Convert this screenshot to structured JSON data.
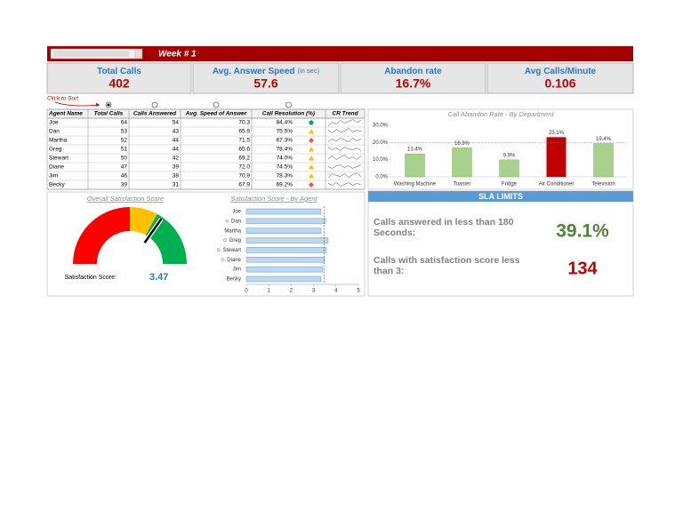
{
  "header": {
    "title": "Week # 1"
  },
  "kpis": [
    {
      "label": "Total Calls",
      "value": "402"
    },
    {
      "label": "Avg. Answer Speed",
      "unit": "(in sec)",
      "value": "57.6"
    },
    {
      "label": "Abandon rate",
      "value": "16.7%"
    },
    {
      "label": "Avg Calls/Minute",
      "value": "0.106"
    }
  ],
  "sort_hint": "Click to Sort",
  "table": {
    "columns": [
      "Agent Name",
      "Total Calls",
      "Calls Answered",
      "Avg. Speed of Answer",
      "Call Resolution (%)",
      "CR Trend"
    ],
    "rows": [
      [
        "Joe",
        "64",
        "54",
        "70.3",
        "84.4%"
      ],
      [
        "Dan",
        "53",
        "43",
        "65.9",
        "75.5%"
      ],
      [
        "Martha",
        "52",
        "44",
        "71.5",
        "67.3%"
      ],
      [
        "Greg",
        "51",
        "44",
        "65.6",
        "78.4%"
      ],
      [
        "Stewart",
        "50",
        "42",
        "69.2",
        "74.0%"
      ],
      [
        "Diane",
        "47",
        "39",
        "72.0",
        "74.5%"
      ],
      [
        "Jim",
        "46",
        "38",
        "70.9",
        "78.3%"
      ],
      [
        "Becky",
        "39",
        "31",
        "67.9",
        "69.2%"
      ]
    ],
    "status_icons": [
      "green",
      "yellow",
      "red",
      "yellow",
      "yellow",
      "yellow",
      "yellow",
      "red"
    ]
  },
  "chart_data": [
    {
      "type": "bar",
      "title": "Call Abandon Rate - By Department",
      "categories": [
        "Washing Machine",
        "Toaster",
        "Fridge",
        "Air Conditioner",
        "Television"
      ],
      "values": [
        13.4,
        16.9,
        9.9,
        23.1,
        19.4
      ],
      "value_labels": [
        "13.4%",
        "16.9%",
        "9.9%",
        "23.1%",
        "19.4%"
      ],
      "colors": [
        "#a9d18e",
        "#a9d18e",
        "#a9d18e",
        "#c00000",
        "#a9d18e"
      ],
      "ylim": [
        0,
        30
      ],
      "yticks": [
        {
          "value": 0,
          "label": "0.0%"
        },
        {
          "value": 10,
          "label": "10.0%"
        },
        {
          "value": 20,
          "label": "20.0%"
        },
        {
          "value": 30,
          "label": "30.0%"
        }
      ],
      "target": 20
    },
    {
      "type": "gauge",
      "title": "Overall Satisfaction Score",
      "value_label": "Satisfaction Score:",
      "value": 3.47,
      "range": [
        0,
        5
      ],
      "bands": [
        {
          "to": 2.5,
          "color": "#ff0000"
        },
        {
          "to": 3.3,
          "color": "#ffc000"
        },
        {
          "to": 5,
          "color": "#00b050"
        }
      ]
    },
    {
      "type": "barh",
      "title": "Satisfaction Score - By Agent",
      "categories": [
        "Joe",
        "☺ Dan",
        "Martha",
        "☺ Greg",
        "☺ Stewart",
        "☺ Diane",
        "Jim",
        "Becky"
      ],
      "values": [
        3.33,
        3.53,
        3.33,
        3.65,
        3.57,
        3.49,
        3.41,
        3.33
      ],
      "color": "#bdd7ee",
      "xlim": [
        0,
        5
      ],
      "xticks": [
        0,
        1,
        2,
        3,
        4,
        5
      ]
    }
  ],
  "sla": {
    "title": "SLA LIMITS",
    "items": [
      {
        "label": "Calls answered in less than 180 Seconds:",
        "value": "39.1%",
        "color": "#548235"
      },
      {
        "label": "Calls with satisfaction score less than 3:",
        "value": "134",
        "color": "#c00000"
      }
    ]
  }
}
